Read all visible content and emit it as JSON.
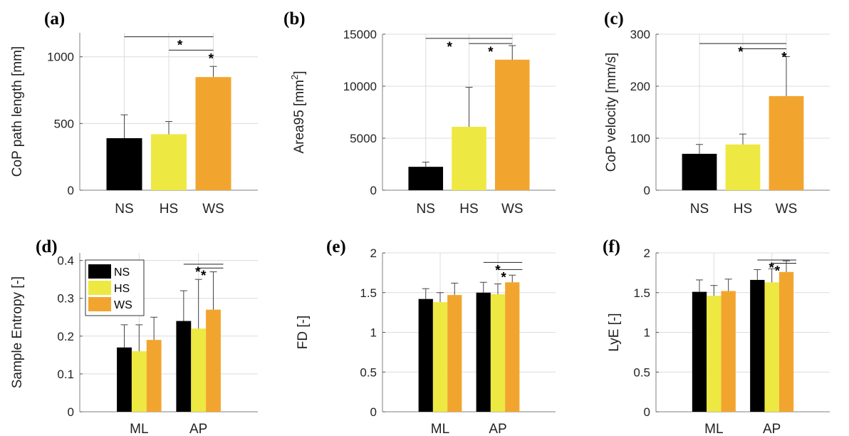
{
  "colors": {
    "NS": "#000000",
    "HS": "#eee843",
    "WS": "#f2a52e",
    "grid": "#dcdcdc",
    "axis": "#7f7f7f"
  },
  "chart_data": [
    {
      "panel": "(a)",
      "type": "bar",
      "categories": [
        "NS",
        "HS",
        "WS"
      ],
      "values": [
        390,
        420,
        848
      ],
      "errors": [
        175,
        95,
        80
      ],
      "ylabel": "CoP path length [mm]",
      "ylim": [
        0,
        1180
      ],
      "yticks": [
        0,
        500,
        1000
      ],
      "ytick_labels": [
        "0",
        "500",
        "1000"
      ],
      "grid": true,
      "significance": [
        {
          "from": 0,
          "to": 2,
          "level": 1150,
          "mark": "*",
          "mark_x": 1.25
        },
        {
          "from": 1,
          "to": 2,
          "level": 1050,
          "mark": "*",
          "mark_x": 1.95
        }
      ]
    },
    {
      "panel": "(b)",
      "type": "bar",
      "categories": [
        "NS",
        "HS",
        "WS"
      ],
      "values": [
        2250,
        6100,
        12550
      ],
      "errors": [
        450,
        3800,
        1350
      ],
      "ylabel": "Area95 [mm2]",
      "ylim": [
        0,
        15000
      ],
      "yticks": [
        0,
        5000,
        10000,
        15000
      ],
      "ytick_labels": [
        "0",
        "5000",
        "10000",
        "15000"
      ],
      "grid": true,
      "significance": [
        {
          "from": 0,
          "to": 2,
          "level": 14600,
          "mark": "*",
          "mark_x": 0.55
        },
        {
          "from": 1,
          "to": 2,
          "level": 14100,
          "mark": "*",
          "mark_x": 1.5
        }
      ]
    },
    {
      "panel": "(c)",
      "type": "bar",
      "categories": [
        "NS",
        "HS",
        "WS"
      ],
      "values": [
        70,
        88,
        181
      ],
      "errors": [
        18,
        20,
        76
      ],
      "ylabel": "CoP velocity [mm/s]",
      "ylim": [
        0,
        300
      ],
      "yticks": [
        0,
        100,
        200,
        300
      ],
      "ytick_labels": [
        "0",
        "100",
        "200",
        "300"
      ],
      "grid": true,
      "significance": [
        {
          "from": 0,
          "to": 2,
          "level": 282,
          "mark": "*",
          "mark_x": 0.95
        },
        {
          "from": 1,
          "to": 2,
          "level": 272,
          "mark": "*",
          "mark_x": 1.95
        }
      ]
    },
    {
      "panel": "(d)",
      "type": "bar",
      "groups": [
        "ML",
        "AP"
      ],
      "series": [
        {
          "name": "NS",
          "values": [
            0.17,
            0.24
          ],
          "errors": [
            0.06,
            0.08
          ]
        },
        {
          "name": "HS",
          "values": [
            0.16,
            0.22
          ],
          "errors": [
            0.07,
            0.13
          ]
        },
        {
          "name": "WS",
          "values": [
            0.19,
            0.27
          ],
          "errors": [
            0.06,
            0.1
          ]
        }
      ],
      "ylabel": "Sample Entropy [-]",
      "ylim": [
        0,
        0.42
      ],
      "yticks": [
        0,
        0.1,
        0.2,
        0.3,
        0.4
      ],
      "ytick_labels": [
        "0",
        "0.1",
        "0.2",
        "0.3",
        "0.4"
      ],
      "grid": true,
      "legend": "top-left",
      "significance": [
        {
          "group": 1,
          "from": 0,
          "to": 2,
          "level": 0.39,
          "mark": "*",
          "mark_x": -0.02
        },
        {
          "group": 1,
          "from": 1,
          "to": 2,
          "level": 0.38,
          "mark": "*",
          "mark_x": 0.17
        }
      ]
    },
    {
      "panel": "(e)",
      "type": "bar",
      "groups": [
        "ML",
        "AP"
      ],
      "series": [
        {
          "name": "NS",
          "values": [
            1.42,
            1.5
          ],
          "errors": [
            0.13,
            0.13
          ]
        },
        {
          "name": "HS",
          "values": [
            1.38,
            1.48
          ],
          "errors": [
            0.12,
            0.13
          ]
        },
        {
          "name": "WS",
          "values": [
            1.47,
            1.63
          ],
          "errors": [
            0.15,
            0.09
          ]
        }
      ],
      "ylabel": "FD [-]",
      "ylim": [
        0,
        2
      ],
      "yticks": [
        0,
        0.5,
        1,
        1.5,
        2
      ],
      "ytick_labels": [
        "0",
        "0.5",
        "1",
        "1.5",
        "2"
      ],
      "grid": true,
      "significance": [
        {
          "group": 1,
          "from": 0,
          "to": 2,
          "level": 1.88,
          "mark": "*",
          "mark_x": 0.0
        },
        {
          "group": 1,
          "from": 1,
          "to": 2,
          "level": 1.79,
          "mark": "*",
          "mark_x": 0.2
        }
      ]
    },
    {
      "panel": "(f)",
      "type": "bar",
      "groups": [
        "ML",
        "AP"
      ],
      "series": [
        {
          "name": "NS",
          "values": [
            1.51,
            1.66
          ],
          "errors": [
            0.15,
            0.13
          ]
        },
        {
          "name": "HS",
          "values": [
            1.46,
            1.63
          ],
          "errors": [
            0.13,
            0.17
          ]
        },
        {
          "name": "WS",
          "values": [
            1.52,
            1.76
          ],
          "errors": [
            0.15,
            0.14
          ]
        }
      ],
      "ylabel": "LyE [-]",
      "ylim": [
        0,
        2
      ],
      "yticks": [
        0,
        0.5,
        1,
        1.5,
        2
      ],
      "ytick_labels": [
        "0",
        "0.5",
        "1",
        "1.5",
        "2"
      ],
      "grid": true,
      "significance": [
        {
          "group": 1,
          "from": 0,
          "to": 2,
          "level": 1.91,
          "mark": "*",
          "mark_x": -0.01
        },
        {
          "group": 1,
          "from": 1,
          "to": 2,
          "level": 1.87,
          "mark": "*",
          "mark_x": 0.19
        }
      ]
    }
  ]
}
